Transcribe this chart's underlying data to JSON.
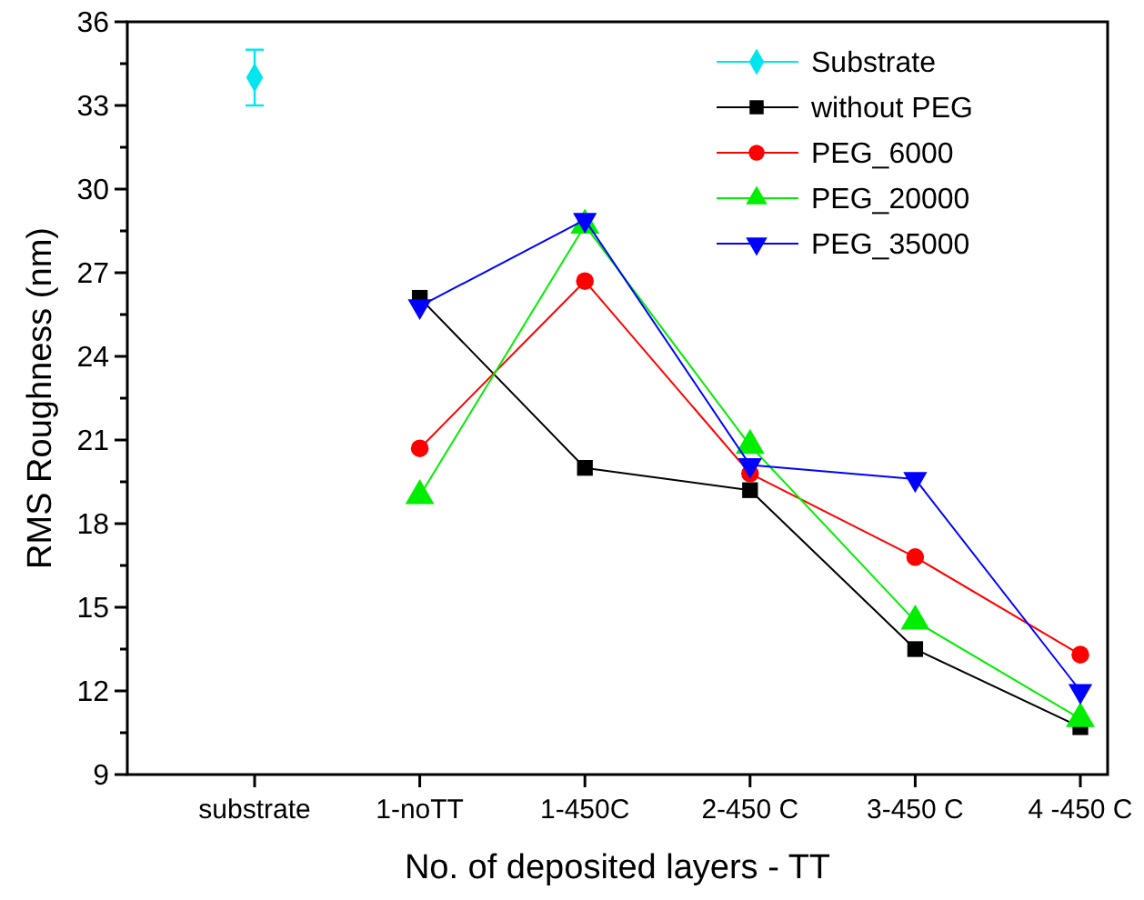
{
  "chart_data": {
    "type": "line",
    "xlabel": "No. of deposited layers - TT",
    "ylabel": "RMS Roughness (nm)",
    "categories": [
      "substrate",
      "1-noTT",
      "1-450C",
      "2-450 C",
      "3-450 C",
      "4 -450 C"
    ],
    "ylim": [
      9,
      36
    ],
    "yticks": [
      9,
      {
        "value": 10.5,
        "label": null
      },
      12,
      {
        "value": 13.5,
        "label": null
      },
      15,
      {
        "value": 16.5,
        "label": null
      },
      18,
      {
        "value": 19.5,
        "label": null
      },
      21,
      {
        "value": 22.5,
        "label": null
      },
      24,
      {
        "value": 25.5,
        "label": null
      },
      27,
      {
        "value": 28.5,
        "label": null
      },
      30,
      {
        "value": 31.5,
        "label": null
      },
      33,
      {
        "value": 34.5,
        "label": null
      },
      36
    ],
    "legend": "top right",
    "grid": false,
    "series": [
      {
        "name": "Substrate",
        "color": "#00e5ee",
        "marker": "diamond",
        "values": [
          34,
          null,
          null,
          null,
          null,
          null
        ],
        "errors": [
          1,
          null,
          null,
          null,
          null,
          null
        ]
      },
      {
        "name": "without PEG",
        "color": "#000000",
        "marker": "square",
        "values": [
          null,
          26.1,
          20.0,
          19.2,
          13.5,
          10.7
        ]
      },
      {
        "name": "PEG_6000",
        "color": "#ff0000",
        "marker": "circle",
        "values": [
          null,
          20.7,
          26.7,
          19.8,
          16.8,
          13.3
        ]
      },
      {
        "name": "PEG_20000",
        "color": "#00ee00",
        "marker": "triangle",
        "values": [
          null,
          19.0,
          28.7,
          20.8,
          14.5,
          11.0
        ]
      },
      {
        "name": "PEG_35000",
        "color": "#0000ff",
        "marker": "triangle-down",
        "values": [
          null,
          25.8,
          28.9,
          20.1,
          19.6,
          12.0
        ]
      }
    ]
  }
}
